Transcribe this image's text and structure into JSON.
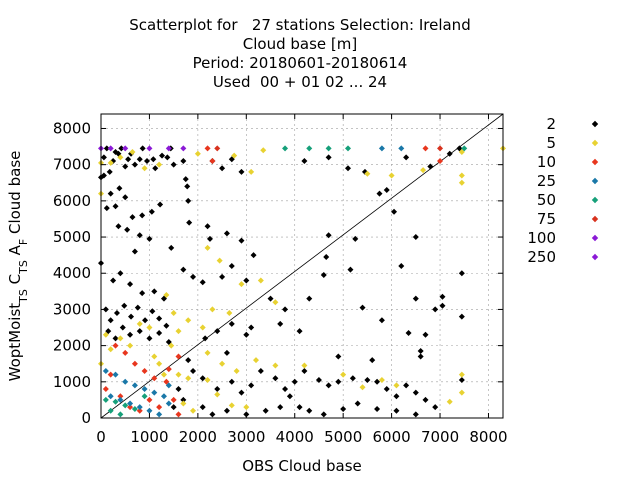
{
  "title_lines": [
    "Scatterplot for   27 stations Selection: Ireland",
    "Cloud base [m]",
    "Period: 20180601-20180614",
    "Used  00 + 01 02 ... 24"
  ],
  "chart_data": {
    "type": "scatter",
    "xlabel": "OBS Cloud base",
    "ylabel": "WoptMoist_TS C_TS A_F Cloud base",
    "xlim": [
      0,
      8300
    ],
    "ylim": [
      0,
      8400
    ],
    "xticks": [
      0,
      1000,
      2000,
      3000,
      4000,
      5000,
      6000,
      7000,
      8000
    ],
    "yticks": [
      0,
      1000,
      2000,
      3000,
      4000,
      5000,
      6000,
      7000,
      8000
    ],
    "grid": true,
    "legend_position": "right",
    "diagonal": {
      "from": [
        0,
        0
      ],
      "to": [
        8300,
        8400
      ]
    },
    "series": [
      {
        "name": "2",
        "color": "#000000",
        "points": [
          [
            0,
            4280
          ],
          [
            0,
            6650
          ],
          [
            60,
            6700
          ],
          [
            60,
            7200
          ],
          [
            120,
            7450
          ],
          [
            180,
            6800
          ],
          [
            250,
            7100
          ],
          [
            300,
            7350
          ],
          [
            360,
            7300
          ],
          [
            420,
            7450
          ],
          [
            500,
            6950
          ],
          [
            560,
            7150
          ],
          [
            620,
            7300
          ],
          [
            700,
            7000
          ],
          [
            800,
            7150
          ],
          [
            860,
            7450
          ],
          [
            950,
            7100
          ],
          [
            1080,
            7150
          ],
          [
            1120,
            6900
          ],
          [
            1260,
            7250
          ],
          [
            1370,
            7200
          ],
          [
            1440,
            7450
          ],
          [
            1500,
            7000
          ],
          [
            1700,
            7100
          ],
          [
            1750,
            6600
          ],
          [
            200,
            6200
          ],
          [
            380,
            6350
          ],
          [
            500,
            6100
          ],
          [
            300,
            5850
          ],
          [
            120,
            5800
          ],
          [
            650,
            5550
          ],
          [
            850,
            5600
          ],
          [
            1050,
            5700
          ],
          [
            1220,
            5900
          ],
          [
            360,
            5300
          ],
          [
            540,
            5200
          ],
          [
            800,
            5050
          ],
          [
            1000,
            4950
          ],
          [
            700,
            4600
          ],
          [
            1450,
            4700
          ],
          [
            250,
            3800
          ],
          [
            400,
            4000
          ],
          [
            600,
            3700
          ],
          [
            850,
            3450
          ],
          [
            1100,
            3500
          ],
          [
            1300,
            3300
          ],
          [
            100,
            3000
          ],
          [
            200,
            2700
          ],
          [
            330,
            2900
          ],
          [
            480,
            3100
          ],
          [
            620,
            2800
          ],
          [
            760,
            3050
          ],
          [
            910,
            2700
          ],
          [
            1060,
            2950
          ],
          [
            1200,
            2750
          ],
          [
            1350,
            2550
          ],
          [
            150,
            2400
          ],
          [
            300,
            2200
          ],
          [
            450,
            2500
          ],
          [
            600,
            2300
          ],
          [
            800,
            2400
          ],
          [
            1000,
            2200
          ],
          [
            1200,
            2350
          ],
          [
            1400,
            2100
          ],
          [
            1780,
            6400
          ],
          [
            1800,
            6000
          ],
          [
            1820,
            5400
          ],
          [
            2300,
            7100
          ],
          [
            2500,
            6900
          ],
          [
            2700,
            7150
          ],
          [
            2900,
            6800
          ],
          [
            2200,
            5300
          ],
          [
            2250,
            4950
          ],
          [
            2600,
            5100
          ],
          [
            1700,
            4100
          ],
          [
            1900,
            3900
          ],
          [
            2100,
            3750
          ],
          [
            2500,
            3900
          ],
          [
            2700,
            4200
          ],
          [
            3000,
            3800
          ],
          [
            3150,
            4500
          ],
          [
            2900,
            4900
          ],
          [
            3500,
            3300
          ],
          [
            3800,
            3000
          ],
          [
            3700,
            2600
          ],
          [
            4100,
            2400
          ],
          [
            4300,
            3300
          ],
          [
            4600,
            3950
          ],
          [
            4650,
            4450
          ],
          [
            5150,
            4100
          ],
          [
            4200,
            7100
          ],
          [
            4700,
            7200
          ],
          [
            5100,
            6900
          ],
          [
            5450,
            6800
          ],
          [
            5750,
            6200
          ],
          [
            5900,
            6300
          ],
          [
            6300,
            7200
          ],
          [
            6800,
            6950
          ],
          [
            7200,
            7300
          ],
          [
            7400,
            7450
          ],
          [
            6200,
            4200
          ],
          [
            6500,
            3300
          ],
          [
            6900,
            3000
          ],
          [
            7050,
            3350
          ],
          [
            7450,
            4000
          ],
          [
            7450,
            2800
          ],
          [
            5400,
            3050
          ],
          [
            5800,
            2700
          ],
          [
            6350,
            2350
          ],
          [
            6600,
            1850
          ],
          [
            6700,
            2300
          ],
          [
            6600,
            1700
          ],
          [
            7050,
            3100
          ],
          [
            2150,
            2200
          ],
          [
            2400,
            2400
          ],
          [
            2700,
            2600
          ],
          [
            3000,
            2300
          ],
          [
            3100,
            2500
          ],
          [
            2600,
            1800
          ],
          [
            1800,
            1600
          ],
          [
            1900,
            1300
          ],
          [
            2100,
            1100
          ],
          [
            2400,
            800
          ],
          [
            2700,
            1000
          ],
          [
            2900,
            700
          ],
          [
            3100,
            900
          ],
          [
            3300,
            1300
          ],
          [
            3600,
            1100
          ],
          [
            3800,
            800
          ],
          [
            4000,
            1000
          ],
          [
            4200,
            1300
          ],
          [
            4500,
            1050
          ],
          [
            4700,
            900
          ],
          [
            4900,
            1000
          ],
          [
            5200,
            1100
          ],
          [
            5500,
            1050
          ],
          [
            5700,
            1000
          ],
          [
            5900,
            800
          ],
          [
            6100,
            600
          ],
          [
            6300,
            900
          ],
          [
            6500,
            700
          ],
          [
            6700,
            500
          ],
          [
            6900,
            300
          ],
          [
            4900,
            1700
          ],
          [
            5600,
            1600
          ],
          [
            3900,
            600
          ],
          [
            4100,
            300
          ],
          [
            4300,
            200
          ],
          [
            4600,
            100
          ],
          [
            5000,
            250
          ],
          [
            5300,
            400
          ],
          [
            5700,
            250
          ],
          [
            6100,
            200
          ],
          [
            6500,
            100
          ],
          [
            2100,
            300
          ],
          [
            2300,
            100
          ],
          [
            2600,
            200
          ],
          [
            3000,
            100
          ],
          [
            3400,
            200
          ],
          [
            3700,
            300
          ],
          [
            1600,
            800
          ],
          [
            1700,
            500
          ],
          [
            1500,
            300
          ],
          [
            7450,
            1050
          ],
          [
            6050,
            5700
          ],
          [
            4700,
            5050
          ],
          [
            5250,
            4950
          ],
          [
            6500,
            5000
          ]
        ]
      },
      {
        "name": "5",
        "color": "#e8d232",
        "points": [
          [
            0,
            7050
          ],
          [
            0,
            6200
          ],
          [
            200,
            7050
          ],
          [
            400,
            7200
          ],
          [
            650,
            7350
          ],
          [
            900,
            6900
          ],
          [
            1200,
            7000
          ],
          [
            2000,
            7300
          ],
          [
            2750,
            7250
          ],
          [
            3100,
            6800
          ],
          [
            3350,
            7400
          ],
          [
            5500,
            6750
          ],
          [
            6000,
            6700
          ],
          [
            6650,
            6850
          ],
          [
            7450,
            6500
          ],
          [
            7450,
            6700
          ],
          [
            8300,
            7450
          ],
          [
            7450,
            7350
          ],
          [
            2200,
            4700
          ],
          [
            2450,
            4350
          ],
          [
            2900,
            3700
          ],
          [
            3300,
            3800
          ],
          [
            3600,
            3200
          ],
          [
            2300,
            3000
          ],
          [
            2650,
            2900
          ],
          [
            2100,
            2500
          ],
          [
            1800,
            2700
          ],
          [
            1600,
            2400
          ],
          [
            1500,
            2900
          ],
          [
            1350,
            3400
          ],
          [
            1450,
            2000
          ],
          [
            2200,
            1800
          ],
          [
            2500,
            1500
          ],
          [
            2800,
            1300
          ],
          [
            3200,
            1600
          ],
          [
            3600,
            1450
          ],
          [
            4200,
            1450
          ],
          [
            5000,
            1200
          ],
          [
            5400,
            850
          ],
          [
            7450,
            700
          ],
          [
            7450,
            1200
          ],
          [
            7200,
            450
          ],
          [
            6100,
            900
          ],
          [
            5800,
            1050
          ],
          [
            2200,
            1050
          ],
          [
            2400,
            650
          ],
          [
            2700,
            350
          ],
          [
            3000,
            300
          ],
          [
            1700,
            400
          ],
          [
            1900,
            200
          ],
          [
            1600,
            1200
          ],
          [
            1800,
            1100
          ],
          [
            1000,
            2500
          ],
          [
            800,
            2600
          ],
          [
            600,
            2000
          ],
          [
            400,
            2200
          ],
          [
            200,
            1900
          ],
          [
            100,
            2300
          ],
          [
            0,
            1500
          ],
          [
            1200,
            1500
          ],
          [
            1300,
            1200
          ],
          [
            1100,
            1700
          ]
        ]
      },
      {
        "name": "10",
        "color": "#e8361e",
        "points": [
          [
            2200,
            7450
          ],
          [
            2300,
            7100
          ],
          [
            6700,
            7450
          ],
          [
            7000,
            7100
          ],
          [
            1600,
            1700
          ],
          [
            1400,
            1350
          ],
          [
            1350,
            1000
          ],
          [
            1500,
            500
          ],
          [
            1600,
            100
          ],
          [
            300,
            2000
          ],
          [
            500,
            1800
          ],
          [
            700,
            1500
          ],
          [
            900,
            1300
          ],
          [
            1100,
            1100
          ],
          [
            200,
            1200
          ],
          [
            100,
            800
          ],
          [
            400,
            600
          ],
          [
            600,
            300
          ],
          [
            800,
            200
          ],
          [
            1000,
            500
          ],
          [
            1200,
            300
          ]
        ]
      },
      {
        "name": "25",
        "color": "#1a78a8",
        "points": [
          [
            5800,
            7450
          ],
          [
            6200,
            7450
          ],
          [
            100,
            1300
          ],
          [
            300,
            1200
          ],
          [
            500,
            1000
          ],
          [
            700,
            900
          ],
          [
            900,
            800
          ],
          [
            1100,
            700
          ],
          [
            1300,
            600
          ],
          [
            200,
            600
          ],
          [
            400,
            500
          ],
          [
            600,
            400
          ],
          [
            800,
            300
          ],
          [
            1000,
            200
          ],
          [
            1200,
            100
          ],
          [
            1400,
            900
          ],
          [
            1400,
            400
          ]
        ]
      },
      {
        "name": "50",
        "color": "#16a07a",
        "points": [
          [
            3800,
            7450
          ],
          [
            4300,
            7450
          ],
          [
            4700,
            7450
          ],
          [
            5100,
            7450
          ],
          [
            7500,
            7450
          ],
          [
            100,
            500
          ],
          [
            300,
            450
          ],
          [
            500,
            350
          ],
          [
            700,
            250
          ],
          [
            900,
            600
          ],
          [
            200,
            200
          ],
          [
            400,
            100
          ]
        ]
      },
      {
        "name": "75",
        "color": "#d8321e",
        "points": [
          [
            2400,
            7450
          ],
          [
            7000,
            7450
          ]
        ]
      },
      {
        "name": "100",
        "color": "#8b1ad6",
        "points": [
          [
            0,
            7450
          ],
          [
            500,
            7450
          ],
          [
            1400,
            7450
          ],
          [
            1700,
            7450
          ]
        ]
      },
      {
        "name": "250",
        "color": "#8b1ad6",
        "points": [
          [
            200,
            7450
          ],
          [
            1000,
            7450
          ]
        ]
      }
    ]
  }
}
